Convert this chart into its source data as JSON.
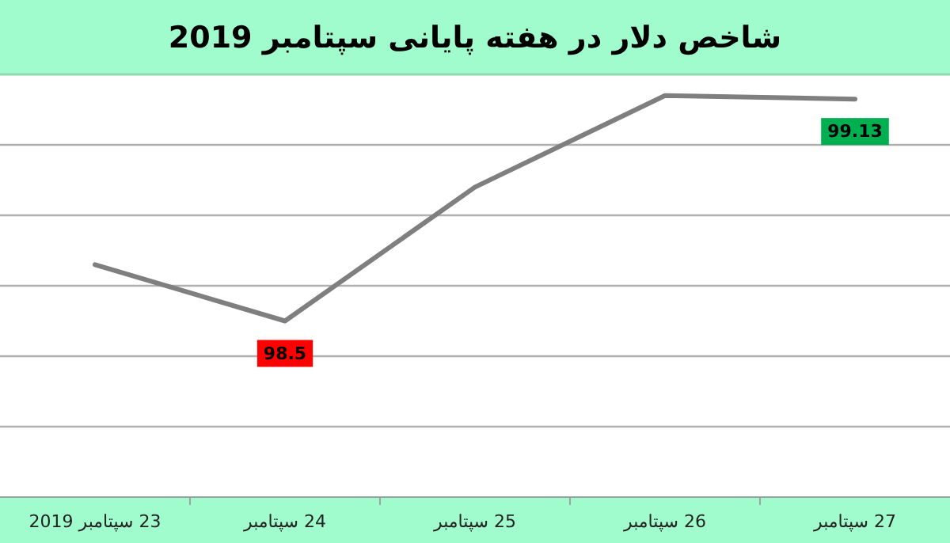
{
  "chart_data": {
    "type": "line",
    "title": "شاخص دلار در هفته پایانی سپتامبر 2019",
    "categories": [
      "23 سپتامبر 2019",
      "24 سپتامبر",
      "25 سپتامبر",
      "26 سپتامبر",
      "27 سپتامبر"
    ],
    "series": [
      {
        "color": "#7f7f7f",
        "values": [
          98.66,
          98.5,
          98.88,
          99.14,
          99.13
        ],
        "value_labels": [
          null,
          "98.5",
          null,
          null,
          "99.13"
        ]
      }
    ],
    "ylim": [
      98.0,
      99.2
    ],
    "yticks": [
      {
        "value": 98.2,
        "label": null
      },
      {
        "value": 98.4,
        "label": null
      },
      {
        "value": 98.6,
        "label": null
      },
      {
        "value": 98.8,
        "label": null
      },
      {
        "value": 99.0,
        "label": null
      }
    ],
    "tick_labels": "x",
    "grid": "y",
    "marker": "none",
    "line_style": "solid"
  }
}
